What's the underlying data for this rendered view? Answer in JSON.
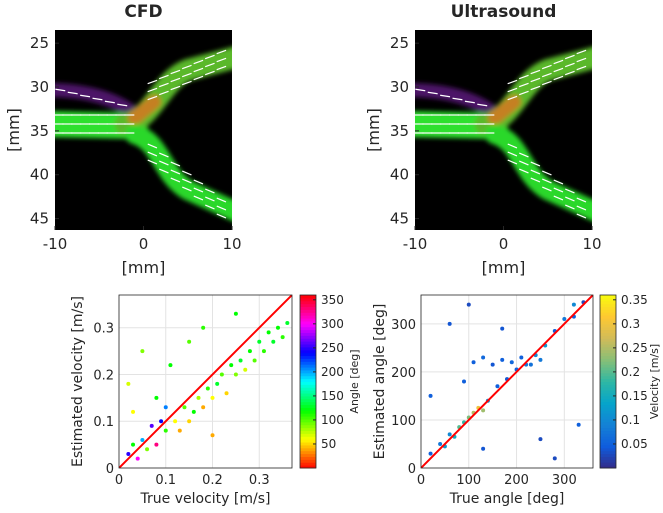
{
  "chart_data": [
    {
      "type": "image",
      "title": "CFD",
      "xlabel": "[mm]",
      "ylabel": "[mm]",
      "xlim": [
        -10,
        10
      ],
      "ylim": [
        23.5,
        46.3
      ],
      "xticks": [
        -10,
        0,
        10
      ],
      "yticks": [
        25,
        30,
        35,
        40,
        45
      ],
      "y_reversed": true
    },
    {
      "type": "image",
      "title": "Ultrasound",
      "xlabel": "[mm]",
      "ylabel": "[mm]",
      "xlim": [
        -10,
        10
      ],
      "ylim": [
        23.5,
        46.3
      ],
      "xticks": [
        -10,
        0,
        10
      ],
      "yticks": [
        25,
        30,
        35,
        40,
        45
      ],
      "y_reversed": true
    },
    {
      "type": "scatter",
      "xlabel": "True velocity [m/s]",
      "ylabel": "Estimated velocity [m/s]",
      "xlim": [
        0,
        0.37
      ],
      "ylim": [
        0,
        0.37
      ],
      "xticks": [
        0,
        0.1,
        0.2,
        0.3
      ],
      "yticks": [
        0,
        0.1,
        0.2,
        0.3
      ],
      "grid": true,
      "identity_line": "#ff0000",
      "colormap": "hsv",
      "colorbar": {
        "label": "Angle [deg]",
        "clim": [
          0,
          360
        ],
        "ticks": [
          50,
          100,
          150,
          200,
          250,
          300,
          350
        ]
      },
      "x": [
        0.02,
        0.03,
        0.04,
        0.05,
        0.06,
        0.07,
        0.08,
        0.09,
        0.1,
        0.1,
        0.12,
        0.13,
        0.14,
        0.15,
        0.16,
        0.17,
        0.18,
        0.19,
        0.2,
        0.21,
        0.22,
        0.23,
        0.24,
        0.25,
        0.26,
        0.27,
        0.28,
        0.29,
        0.3,
        0.31,
        0.32,
        0.33,
        0.34,
        0.35,
        0.36,
        0.02,
        0.05,
        0.03,
        0.11,
        0.15,
        0.08,
        0.2,
        0.18,
        0.25
      ],
      "y": [
        0.03,
        0.05,
        0.02,
        0.06,
        0.04,
        0.09,
        0.05,
        0.1,
        0.08,
        0.13,
        0.1,
        0.08,
        0.13,
        0.1,
        0.12,
        0.15,
        0.13,
        0.17,
        0.15,
        0.18,
        0.2,
        0.16,
        0.22,
        0.2,
        0.23,
        0.21,
        0.25,
        0.23,
        0.27,
        0.25,
        0.29,
        0.27,
        0.3,
        0.28,
        0.31,
        0.18,
        0.25,
        0.12,
        0.22,
        0.27,
        0.15,
        0.07,
        0.3,
        0.33
      ],
      "c": [
        250,
        120,
        300,
        200,
        90,
        260,
        330,
        240,
        110,
        210,
        60,
        40,
        100,
        50,
        120,
        80,
        40,
        110,
        60,
        130,
        100,
        50,
        120,
        90,
        130,
        70,
        120,
        100,
        130,
        110,
        120,
        130,
        120,
        110,
        130,
        70,
        90,
        60,
        120,
        100,
        120,
        40,
        110,
        120
      ]
    },
    {
      "type": "scatter",
      "xlabel": "True angle [deg]",
      "ylabel": "Estimated angle [deg]",
      "xlim": [
        0,
        360
      ],
      "ylim": [
        0,
        360
      ],
      "xticks": [
        0,
        100,
        200,
        300
      ],
      "yticks": [
        0,
        100,
        200,
        300
      ],
      "grid": true,
      "identity_line": "#ff0000",
      "colormap": "parula",
      "colorbar": {
        "label": "Velocity [m/s]",
        "clim": [
          0,
          0.36
        ],
        "ticks": [
          0.05,
          0.1,
          0.15,
          0.2,
          0.25,
          0.3,
          0.35
        ]
      },
      "x": [
        20,
        40,
        50,
        60,
        70,
        80,
        90,
        100,
        110,
        120,
        130,
        140,
        160,
        180,
        200,
        220,
        240,
        260,
        280,
        300,
        320,
        340,
        110,
        130,
        150,
        170,
        190,
        210,
        230,
        250,
        100,
        60,
        330,
        280,
        130,
        250,
        20,
        320,
        170,
        90
      ],
      "y": [
        30,
        50,
        45,
        70,
        65,
        85,
        95,
        105,
        115,
        125,
        120,
        140,
        170,
        185,
        205,
        215,
        235,
        255,
        285,
        310,
        315,
        345,
        220,
        230,
        215,
        225,
        220,
        230,
        215,
        225,
        340,
        300,
        90,
        20,
        40,
        60,
        150,
        340,
        290,
        180
      ],
      "c": [
        0.05,
        0.08,
        0.12,
        0.1,
        0.15,
        0.2,
        0.18,
        0.22,
        0.25,
        0.3,
        0.24,
        0.1,
        0.05,
        0.04,
        0.05,
        0.08,
        0.1,
        0.12,
        0.05,
        0.08,
        0.05,
        0.03,
        0.05,
        0.06,
        0.04,
        0.05,
        0.06,
        0.05,
        0.07,
        0.08,
        0.03,
        0.04,
        0.05,
        0.03,
        0.04,
        0.03,
        0.05,
        0.1,
        0.04,
        0.05
      ]
    }
  ]
}
